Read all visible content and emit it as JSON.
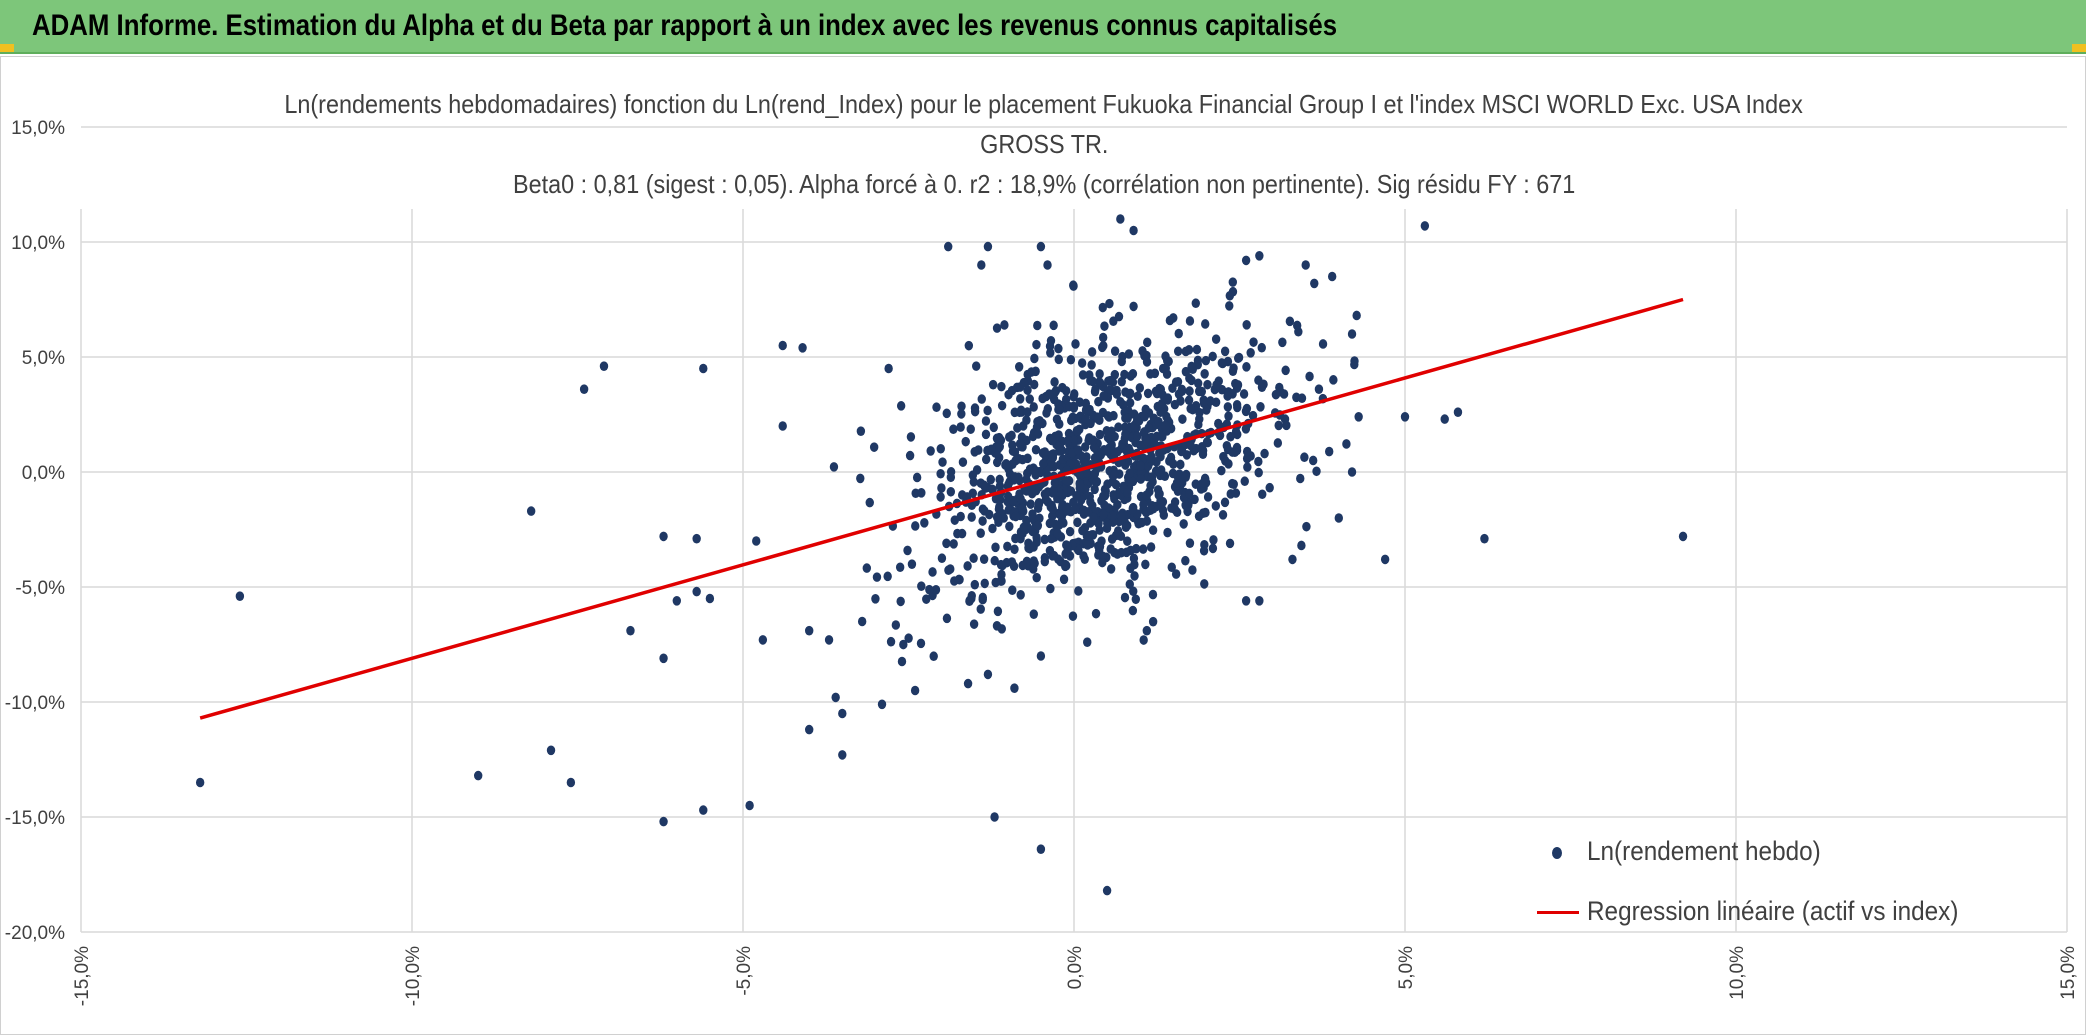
{
  "header": {
    "title": "ADAM Informe. Estimation du Alpha et du Beta par rapport à un index avec les revenus connus capitalisés"
  },
  "colors": {
    "header_bg": "#7dc67a",
    "point_color": "#1f3864",
    "line_color": "#e00000",
    "grid_color": "#d9d9d9",
    "text_color": "#404040"
  },
  "chart_data": {
    "type": "scatter",
    "title_lines": [
      "Ln(rendements hebdomadaires) fonction du Ln(rend_Index) pour le placement Fukuoka Financial Group I et l'index MSCI WORLD Exc. USA Index",
      "GROSS TR.",
      "Beta0 : 0,81 (sigest : 0,05). Alpha forcé à 0. r2 : 18,9% (corrélation non pertinente). Sig résidu FY : 671"
    ],
    "xlabel": "",
    "ylabel": "",
    "xlim": [
      -15,
      15
    ],
    "ylim": [
      -20,
      15
    ],
    "x_ticks": [
      "-15,0%",
      "-10,0%",
      "-5,0%",
      "0,0%",
      "5,0%",
      "10,0%",
      "15,0%"
    ],
    "y_ticks": [
      "15,0%",
      "10,0%",
      "5,0%",
      "0,0%",
      "-5,0%",
      "-10,0%",
      "-15,0%",
      "-20,0%"
    ],
    "grid": true,
    "legend_position": "bottom-right",
    "series": [
      {
        "name": "Ln(rendement hebdo)",
        "kind": "scatter",
        "note_points": "outer points listed; dense central cloud generated around the regression line",
        "points": [
          [
            -13.2,
            -13.5
          ],
          [
            -12.6,
            -5.4
          ],
          [
            -8.2,
            -1.7
          ],
          [
            -7.9,
            -12.1
          ],
          [
            -7.6,
            -13.5
          ],
          [
            -7.4,
            3.6
          ],
          [
            -7.1,
            4.6
          ],
          [
            -9.0,
            -13.2
          ],
          [
            -6.7,
            -6.9
          ],
          [
            -6.2,
            -8.1
          ],
          [
            -6.2,
            -15.2
          ],
          [
            -6.2,
            -2.8
          ],
          [
            -6.0,
            -5.6
          ],
          [
            -5.7,
            -5.2
          ],
          [
            -5.7,
            -2.9
          ],
          [
            -5.6,
            4.5
          ],
          [
            -5.6,
            -14.7
          ],
          [
            -5.5,
            -5.5
          ],
          [
            -4.9,
            -14.5
          ],
          [
            -4.8,
            -3.0
          ],
          [
            -4.7,
            -7.3
          ],
          [
            -4.4,
            2.0
          ],
          [
            -4.4,
            5.5
          ],
          [
            -4.1,
            5.4
          ],
          [
            -4.0,
            -6.9
          ],
          [
            -4.0,
            -11.2
          ],
          [
            -3.7,
            -7.3
          ],
          [
            -3.6,
            -9.8
          ],
          [
            -3.5,
            -10.5
          ],
          [
            -3.5,
            -12.3
          ],
          [
            -2.9,
            -10.1
          ],
          [
            -2.8,
            4.5
          ],
          [
            -2.4,
            -9.5
          ],
          [
            -1.9,
            9.8
          ],
          [
            -1.4,
            9.0
          ],
          [
            -1.3,
            9.8
          ],
          [
            -1.3,
            -8.8
          ],
          [
            -1.2,
            -15.0
          ],
          [
            -0.9,
            -9.4
          ],
          [
            -0.5,
            9.8
          ],
          [
            -0.5,
            -16.4
          ],
          [
            -0.4,
            9.0
          ],
          [
            0.5,
            -18.2
          ],
          [
            0.7,
            11.0
          ],
          [
            0.9,
            10.5
          ],
          [
            2.6,
            9.2
          ],
          [
            2.8,
            9.4
          ],
          [
            3.5,
            9.0
          ],
          [
            3.9,
            8.5
          ],
          [
            4.7,
            -3.8
          ],
          [
            5.3,
            10.7
          ],
          [
            5.0,
            2.4
          ],
          [
            5.6,
            2.3
          ],
          [
            5.8,
            2.6
          ],
          [
            6.2,
            -2.9
          ],
          [
            9.2,
            -2.8
          ],
          [
            3.3,
            -3.8
          ],
          [
            2.8,
            -5.6
          ],
          [
            2.6,
            -5.6
          ],
          [
            4.0,
            -2.0
          ],
          [
            4.2,
            0.0
          ],
          [
            4.3,
            2.4
          ],
          [
            4.2,
            6.0
          ],
          [
            3.7,
            3.6
          ],
          [
            -0.5,
            -8.0
          ],
          [
            0.2,
            -7.4
          ],
          [
            -1.6,
            -9.2
          ],
          [
            1.1,
            -6.9
          ],
          [
            -3.2,
            -6.5
          ],
          [
            0.9,
            7.2
          ],
          [
            1.5,
            6.7
          ]
        ]
      },
      {
        "name": "Regression linéaire (actif vs index)",
        "kind": "line",
        "points": [
          [
            -13.2,
            -10.7
          ],
          [
            9.2,
            7.5
          ]
        ]
      }
    ]
  }
}
